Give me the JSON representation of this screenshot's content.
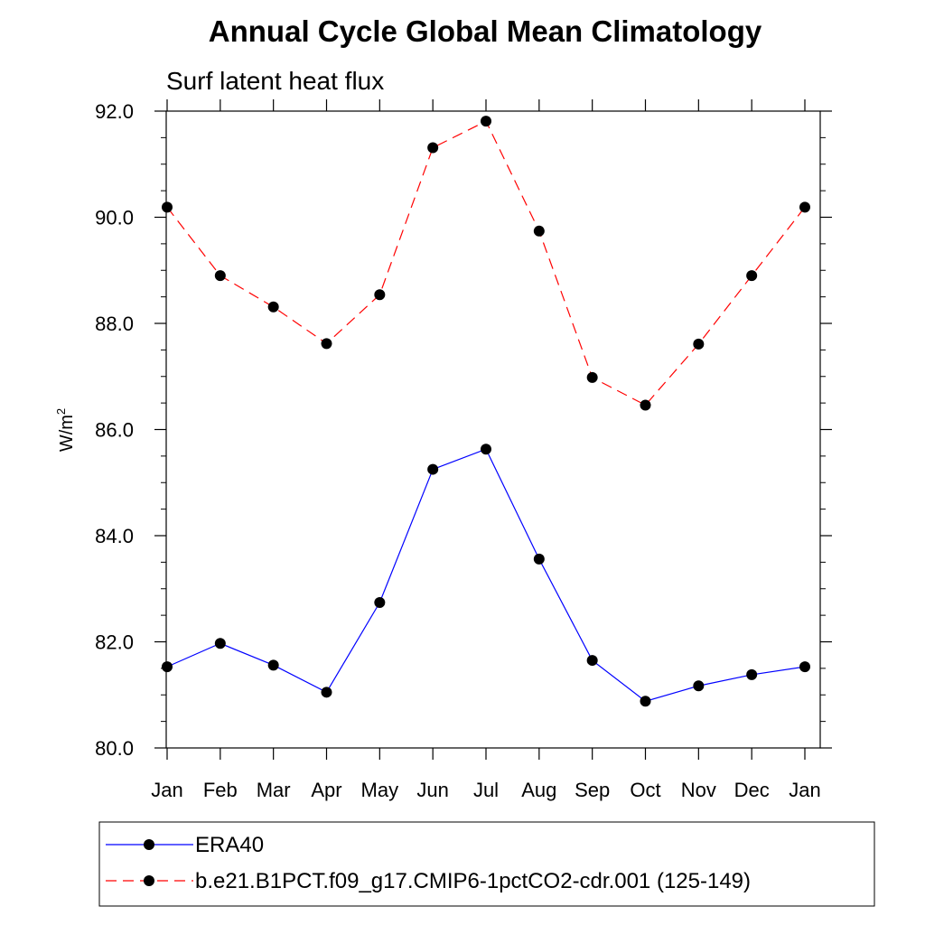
{
  "chart_data": {
    "type": "line",
    "title": "Annual Cycle Global Mean Climatology",
    "subtitle": "Surf latent heat flux",
    "ylabel": "W/m",
    "ylabel_sup": "2",
    "categories": [
      "Jan",
      "Feb",
      "Mar",
      "Apr",
      "May",
      "Jun",
      "Jul",
      "Aug",
      "Sep",
      "Oct",
      "Nov",
      "Dec",
      "Jan"
    ],
    "ylim": [
      80.0,
      92.0
    ],
    "yticks": [
      "80.0",
      "82.0",
      "84.0",
      "86.0",
      "88.0",
      "90.0",
      "92.0"
    ],
    "grid": false,
    "legend_position": "bottom",
    "series": [
      {
        "name": "ERA40",
        "color": "#0000ff",
        "style": "solid",
        "values": [
          81.53,
          81.97,
          81.56,
          81.05,
          82.74,
          85.25,
          85.63,
          83.56,
          81.65,
          80.88,
          81.17,
          81.38,
          81.53
        ]
      },
      {
        "name": "b.e21.B1PCT.f09_g17.CMIP6-1pctCO2-cdr.001 (125-149)",
        "color": "#ff0000",
        "style": "dashed",
        "values": [
          90.19,
          88.9,
          88.31,
          87.62,
          88.54,
          91.31,
          91.81,
          89.74,
          86.98,
          86.46,
          87.61,
          88.9,
          90.19
        ]
      }
    ]
  }
}
